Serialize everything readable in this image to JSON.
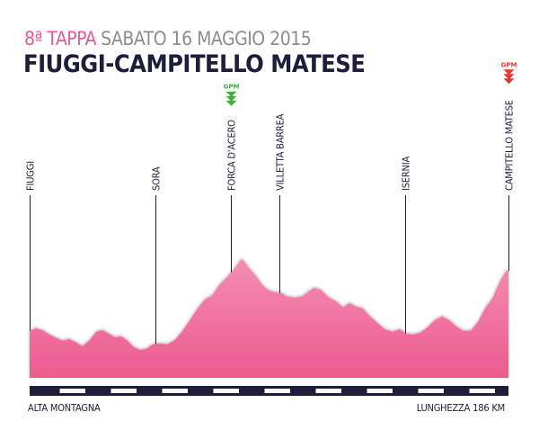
{
  "header": {
    "stage": "8ª TAPPA",
    "date": "SABATO 16 MAGGIO 2015",
    "route": "FIUGGI-CAMPITELLO MATESE"
  },
  "locations": [
    {
      "name": "FIUGGI",
      "km": 0
    },
    {
      "name": "SORA",
      "km": 49
    },
    {
      "name": "FORCA D'ACERO",
      "km": 78,
      "gpm": "green"
    },
    {
      "name": "VILLETTA BARREA",
      "km": 97
    },
    {
      "name": "ISERNIA",
      "km": 146
    },
    {
      "name": "CAMPITELLO MATESE",
      "km": 186,
      "gpm": "red"
    }
  ],
  "gpm_label": "GPM",
  "colors": {
    "stage": "#e8598f",
    "profile": "#f07aa4",
    "gpm_green": "#3fb13a",
    "gpm_red": "#e8322f",
    "text_dark": "#1e1e3a"
  },
  "footer": {
    "left": "ALTA MONTAGNA",
    "right": "LUNGHEZZA 186 KM"
  }
}
